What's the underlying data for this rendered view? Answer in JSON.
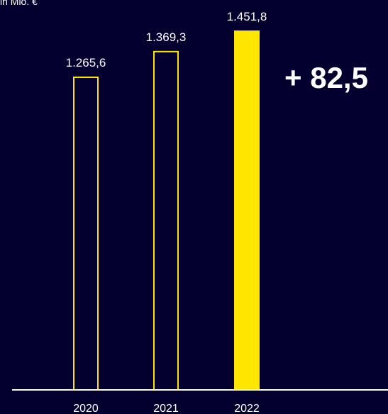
{
  "chart_data": {
    "type": "bar",
    "unit_label": "in Mio. €",
    "categories": [
      "2020",
      "2021",
      "2022"
    ],
    "values": [
      1265.6,
      1369.3,
      1451.8
    ],
    "value_labels": [
      "1.265,6",
      "1.369,3",
      "1.451,8"
    ],
    "bar_styles": [
      "outline",
      "outline",
      "filled"
    ],
    "delta_label": "+ 82,5",
    "ylim": [
      0,
      1451.8
    ],
    "grid": false,
    "legend": "none"
  },
  "colors": {
    "background": "#03002f",
    "bar_accent": "#ffe600",
    "text": "#ffffff",
    "axis": "#ffffff"
  }
}
